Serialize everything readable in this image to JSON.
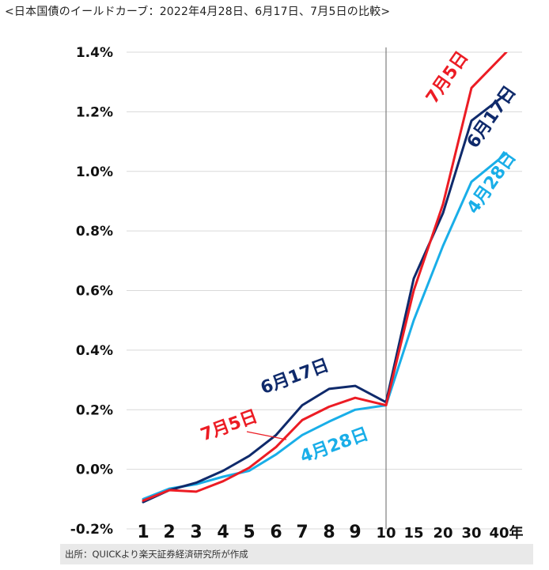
{
  "title": "<日本国債のイールドカーブ：2022年4月28日、6月17日、7月5日の比較>",
  "source": "出所：QUICKより楽天証券経済研究所が作成",
  "chart_data": {
    "type": "line",
    "title": "<日本国債のイールドカーブ：2022年4月28日、6月17日、7月5日の比較>",
    "xlabel": "",
    "ylabel": "",
    "categories": [
      "1",
      "2",
      "3",
      "4",
      "5",
      "6",
      "7",
      "8",
      "9",
      "10",
      "15",
      "20",
      "30",
      "40年"
    ],
    "ylim": [
      -0.2,
      1.4
    ],
    "y_ticks": [
      {
        "value": 1.4,
        "label": "1.4%"
      },
      {
        "value": 1.2,
        "label": "1.2%"
      },
      {
        "value": 1.0,
        "label": "1.0%"
      },
      {
        "value": 0.8,
        "label": "0.8%"
      },
      {
        "value": 0.6,
        "label": "0.6%"
      },
      {
        "value": 0.4,
        "label": "0.4%"
      },
      {
        "value": 0.2,
        "label": "0.2%"
      },
      {
        "value": 0.0,
        "label": "0.0%"
      },
      {
        "value": -0.2,
        "label": "-0.2%"
      }
    ],
    "grid": true,
    "series": [
      {
        "name": "4月28日",
        "color": "#19aee8",
        "values": [
          -0.1,
          -0.065,
          -0.05,
          -0.025,
          -0.005,
          0.05,
          0.115,
          0.16,
          0.2,
          0.215,
          0.5,
          0.75,
          0.965,
          1.06
        ]
      },
      {
        "name": "6月17日",
        "color": "#0f2a6b",
        "values": [
          -0.11,
          -0.07,
          -0.045,
          -0.005,
          0.045,
          0.115,
          0.215,
          0.27,
          0.28,
          0.225,
          0.64,
          0.86,
          1.17,
          1.26
        ]
      },
      {
        "name": "7月5日",
        "color": "#ec1c24",
        "values": [
          -0.105,
          -0.07,
          -0.075,
          -0.04,
          0.005,
          0.075,
          0.165,
          0.21,
          0.24,
          0.215,
          0.6,
          0.89,
          1.28,
          1.4
        ]
      }
    ]
  }
}
